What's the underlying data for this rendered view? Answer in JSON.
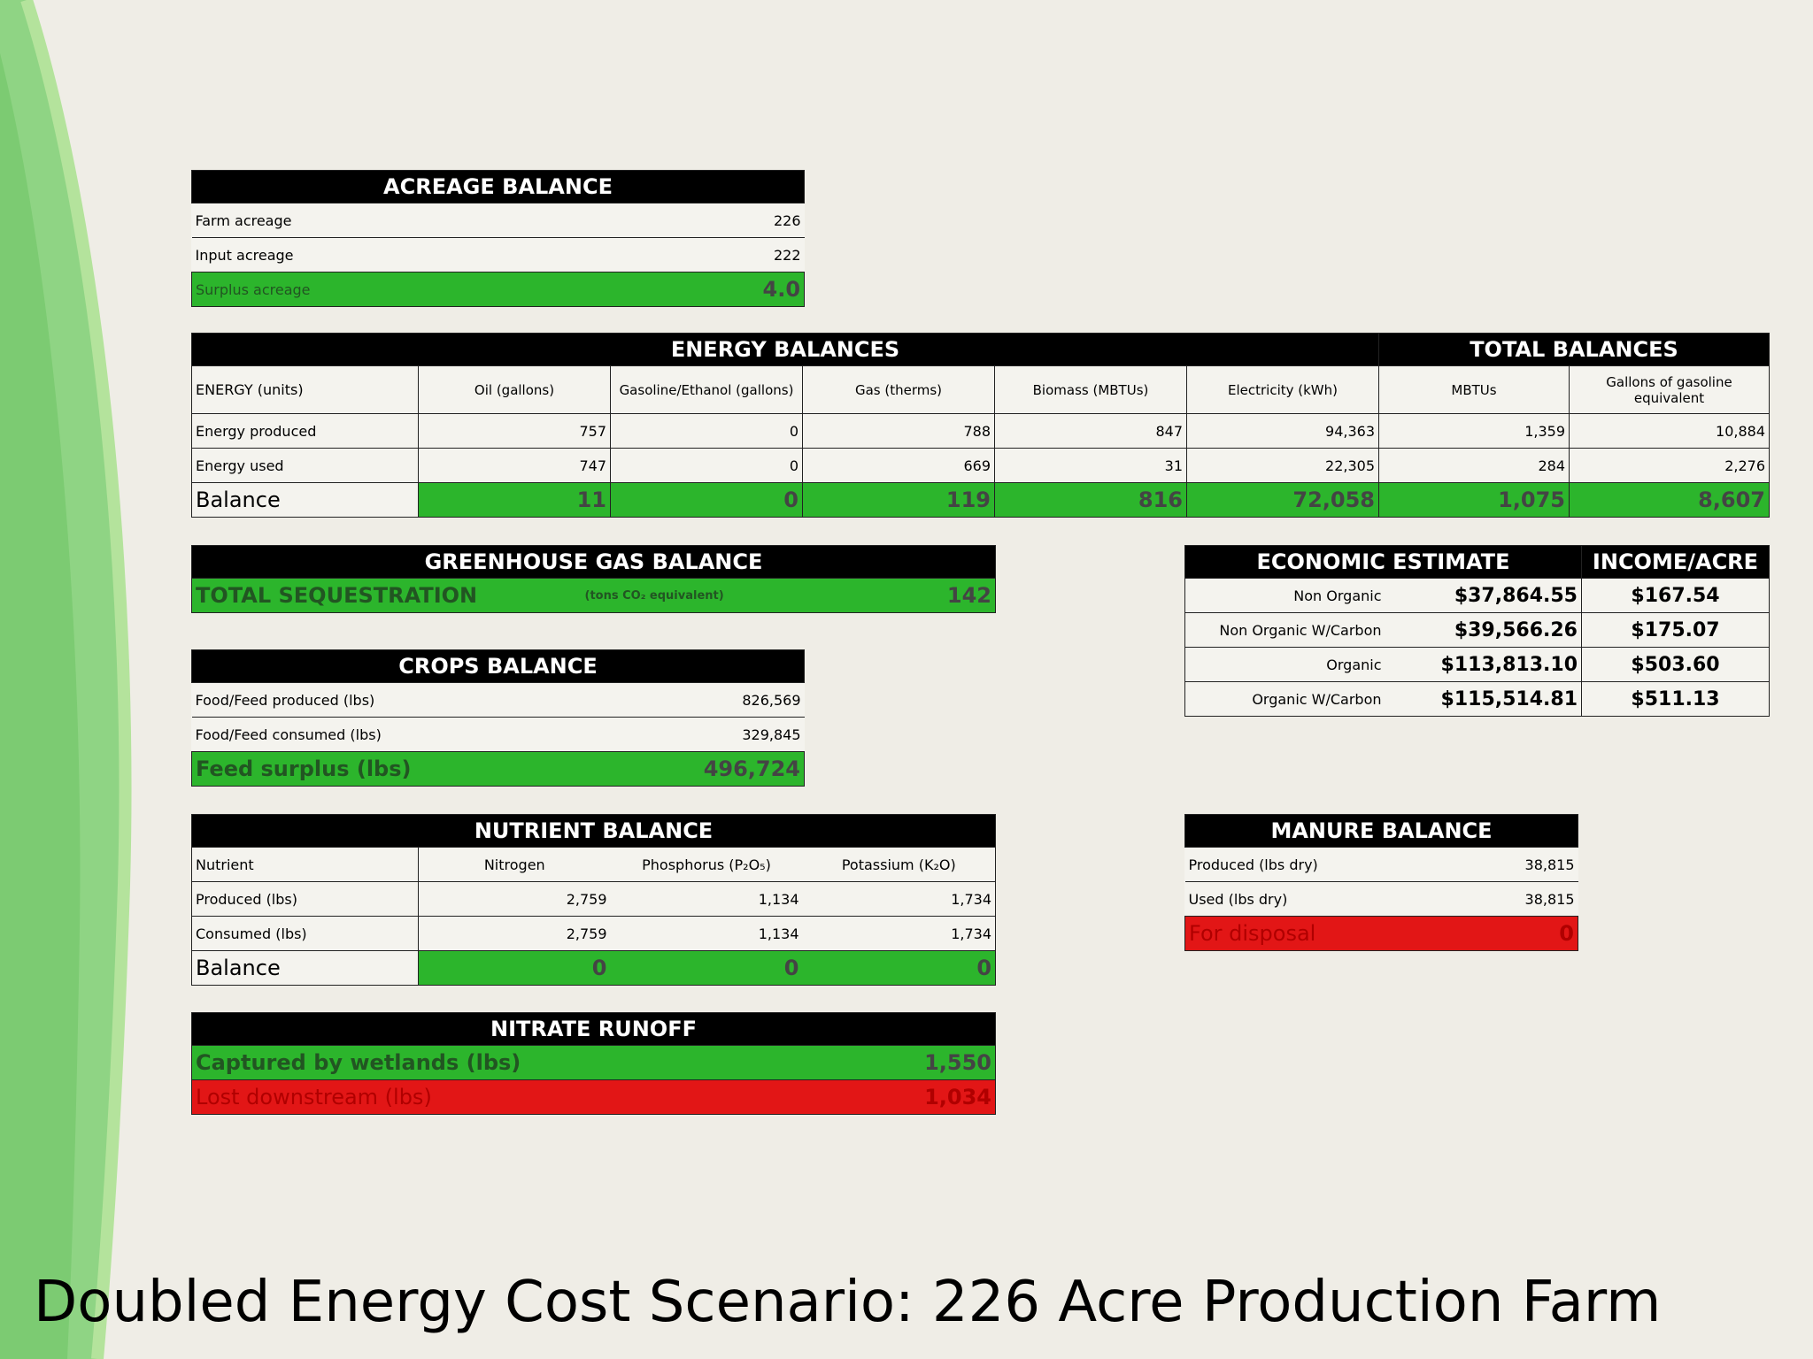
{
  "title": "Doubled Energy Cost Scenario: 226 Acre Production Farm",
  "acreage": {
    "header": "ACREAGE BALANCE",
    "rows": [
      {
        "label": "Farm acreage",
        "value": "226"
      },
      {
        "label": "Input acreage",
        "value": "222"
      }
    ],
    "total": {
      "label": "Surplus acreage",
      "value": "4.0"
    }
  },
  "energy": {
    "header": "ENERGY BALANCES",
    "total_header": "TOTAL BALANCES",
    "columns": [
      "ENERGY (units)",
      "Oil (gallons)",
      "Gasoline/Ethanol (gallons)",
      "Gas (therms)",
      "Biomass (MBTUs)",
      "Electricity (kWh)",
      "MBTUs",
      "Gallons of gasoline equivalent"
    ],
    "rows": [
      {
        "label": "Energy produced",
        "values": [
          "757",
          "0",
          "788",
          "847",
          "94,363",
          "1,359",
          "10,884"
        ]
      },
      {
        "label": "Energy used",
        "values": [
          "747",
          "0",
          "669",
          "31",
          "22,305",
          "284",
          "2,276"
        ]
      }
    ],
    "balance": {
      "label": "Balance",
      "values": [
        "11",
        "0",
        "119",
        "816",
        "72,058",
        "1,075",
        "8,607"
      ]
    }
  },
  "ghg": {
    "header": "GREENHOUSE GAS BALANCE",
    "label": "TOTAL SEQUESTRATION",
    "unit": "(tons CO₂ equivalent)",
    "value": "142"
  },
  "crops": {
    "header": "CROPS BALANCE",
    "rows": [
      {
        "label": "Food/Feed produced (lbs)",
        "value": "826,569"
      },
      {
        "label": "Food/Feed consumed (lbs)",
        "value": "329,845"
      }
    ],
    "total": {
      "label": "Feed surplus (lbs)",
      "value": "496,724"
    }
  },
  "nutrient": {
    "header": "NUTRIENT BALANCE",
    "columns": [
      "Nutrient",
      "Nitrogen",
      "Phosphorus (P₂O₅)",
      "Potassium (K₂O)"
    ],
    "rows": [
      {
        "label": "Produced (lbs)",
        "values": [
          "2,759",
          "1,134",
          "1,734"
        ]
      },
      {
        "label": "Consumed (lbs)",
        "values": [
          "2,759",
          "1,134",
          "1,734"
        ]
      }
    ],
    "balance": {
      "label": "Balance",
      "values": [
        "0",
        "0",
        "0"
      ]
    }
  },
  "nitrate": {
    "header": "NITRATE RUNOFF",
    "captured": {
      "label": "Captured by wetlands (lbs)",
      "value": "1,550"
    },
    "lost": {
      "label": "Lost downstream (lbs)",
      "value": "1,034"
    }
  },
  "economic": {
    "header": "ECONOMIC ESTIMATE",
    "income_header": "INCOME/ACRE",
    "rows": [
      {
        "label": "Non Organic",
        "value": "$37,864.55",
        "income": "$167.54"
      },
      {
        "label": "Non Organic W/Carbon",
        "value": "$39,566.26",
        "income": "$175.07"
      },
      {
        "label": "Organic",
        "value": "$113,813.10",
        "income": "$503.60"
      },
      {
        "label": "Organic W/Carbon",
        "value": "$115,514.81",
        "income": "$511.13"
      }
    ]
  },
  "manure": {
    "header": "MANURE BALANCE",
    "rows": [
      {
        "label": "Produced (lbs dry)",
        "value": "38,815"
      },
      {
        "label": "Used (lbs dry)",
        "value": "38,815"
      }
    ],
    "total": {
      "label": "For disposal",
      "value": "0"
    }
  }
}
